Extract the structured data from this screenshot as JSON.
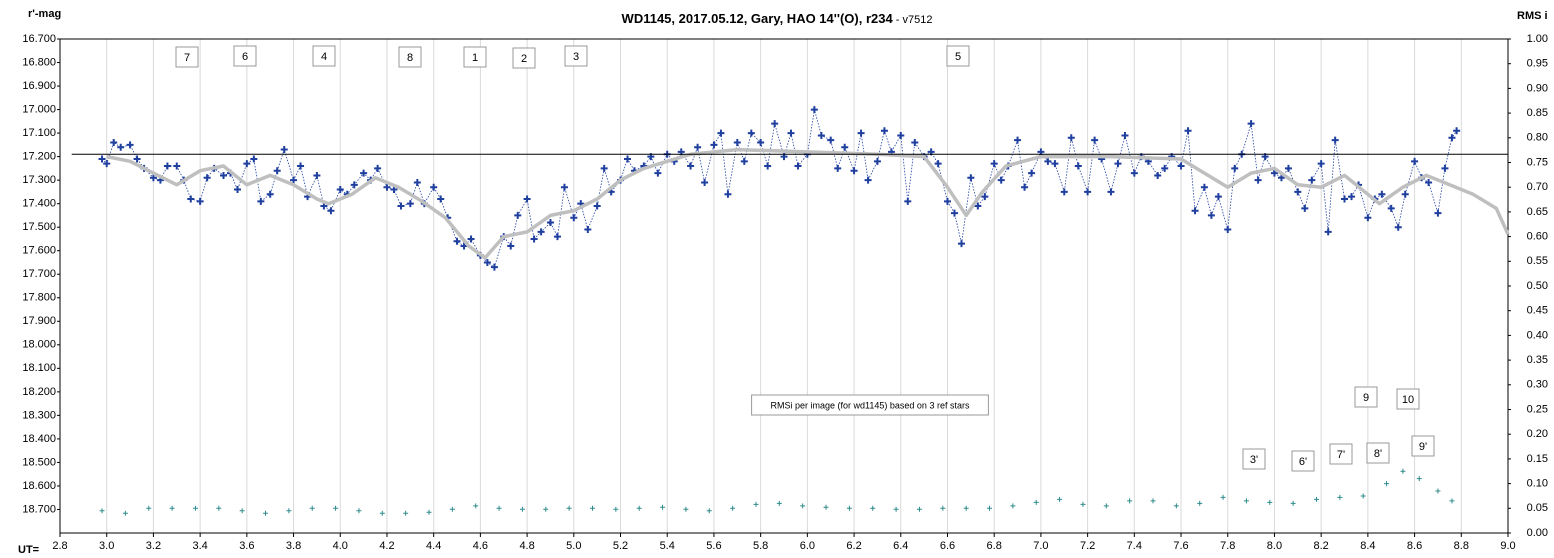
{
  "chart_data": {
    "type": "line",
    "title": "WD1145, 2017.05.12,  Gary, HAO 14''(O), r234",
    "subtitle": " - v7512",
    "y_label": "r'-mag",
    "y2_label": "RMS i",
    "x_label": "UT=",
    "xlim": [
      2.8,
      9.0
    ],
    "ylim": [
      18.8,
      16.7
    ],
    "y2lim": [
      0,
      1
    ],
    "xticks": [
      2.8,
      {
        "value": 3.0,
        "label": "3.0"
      },
      3.2,
      3.4,
      3.6,
      3.8,
      {
        "value": 4.0,
        "label": "4.0"
      },
      4.2,
      4.4,
      4.6,
      4.8,
      {
        "value": 5.0,
        "label": "5.0"
      },
      5.2,
      5.4,
      5.6,
      5.8,
      {
        "value": 6.0,
        "label": "6.0"
      },
      6.2,
      6.4,
      6.6,
      6.8,
      {
        "value": 7.0,
        "label": "7.0"
      },
      7.2,
      7.4,
      7.6,
      7.8,
      {
        "value": 8.0,
        "label": "8.0"
      },
      8.2,
      8.4,
      8.6,
      8.8,
      {
        "value": 9.0,
        "label": "9.0"
      }
    ],
    "yticks": [
      {
        "value": 16.7,
        "label": "16.700"
      },
      {
        "value": 16.8,
        "label": "16.800"
      },
      {
        "value": 16.9,
        "label": "16.900"
      },
      {
        "value": 17.0,
        "label": "17.000"
      },
      {
        "value": 17.1,
        "label": "17.100"
      },
      {
        "value": 17.2,
        "label": "17.200"
      },
      {
        "value": 17.3,
        "label": "17.300"
      },
      {
        "value": 17.4,
        "label": "17.400"
      },
      {
        "value": 17.5,
        "label": "17.500"
      },
      {
        "value": 17.6,
        "label": "17.600"
      },
      {
        "value": 17.7,
        "label": "17.700"
      },
      {
        "value": 17.8,
        "label": "17.800"
      },
      {
        "value": 17.9,
        "label": "17.900"
      },
      {
        "value": 18.0,
        "label": "18.000"
      },
      {
        "value": 18.1,
        "label": "18.100"
      },
      {
        "value": 18.2,
        "label": "18.200"
      },
      {
        "value": 18.3,
        "label": "18.300"
      },
      {
        "value": 18.4,
        "label": "18.400"
      },
      {
        "value": 18.5,
        "label": "18.500"
      },
      {
        "value": 18.6,
        "label": "18.600"
      },
      {
        "value": 18.7,
        "label": "18.700"
      }
    ],
    "y2ticks": [
      {
        "value": 0,
        "label": "0.00"
      },
      0.05,
      {
        "value": 0.1,
        "label": "0.10"
      },
      0.15,
      {
        "value": 0.2,
        "label": "0.20"
      },
      0.25,
      {
        "value": 0.3,
        "label": "0.30"
      },
      0.35,
      {
        "value": 0.4,
        "label": "0.40"
      },
      0.45,
      {
        "value": 0.5,
        "label": "0.50"
      },
      0.55,
      {
        "value": 0.6,
        "label": "0.60"
      },
      0.65,
      {
        "value": 0.7,
        "label": "0.70"
      },
      0.75,
      {
        "value": 0.8,
        "label": "0.80"
      },
      0.85,
      {
        "value": 0.9,
        "label": "0.90"
      },
      0.95,
      {
        "value": 1,
        "label": "1.00"
      }
    ],
    "grid": true,
    "series": [
      {
        "color": "#1f3f9f",
        "marker": "+",
        "line": "dotted",
        "x": [
          2.98,
          3.0,
          3.03,
          3.06,
          3.1,
          3.13,
          3.16,
          3.2,
          3.23,
          3.26,
          3.3,
          3.33,
          3.36,
          3.4,
          3.43,
          3.46,
          3.5,
          3.53,
          3.56,
          3.6,
          3.63,
          3.66,
          3.7,
          3.73,
          3.76,
          3.8,
          3.83,
          3.86,
          3.9,
          3.93,
          3.96,
          4.0,
          4.03,
          4.06,
          4.1,
          4.13,
          4.16,
          4.2,
          4.23,
          4.26,
          4.3,
          4.33,
          4.36,
          4.4,
          4.43,
          4.46,
          4.5,
          4.53,
          4.56,
          4.6,
          4.63,
          4.66,
          4.7,
          4.73,
          4.76,
          4.8,
          4.83,
          4.86,
          4.9,
          4.93,
          4.96,
          5.0,
          5.03,
          5.06,
          5.1,
          5.13,
          5.16,
          5.2,
          5.23,
          5.26,
          5.3,
          5.33,
          5.36,
          5.4,
          5.43,
          5.46,
          5.5,
          5.53,
          5.56,
          5.6,
          5.63,
          5.66,
          5.7,
          5.73,
          5.76,
          5.8,
          5.83,
          5.86,
          5.9,
          5.93,
          5.96,
          6.0,
          6.03,
          6.06,
          6.1,
          6.13,
          6.16,
          6.2,
          6.23,
          6.26,
          6.3,
          6.33,
          6.36,
          6.4,
          6.43,
          6.46,
          6.5,
          6.53,
          6.56,
          6.6,
          6.63,
          6.66,
          6.7,
          6.73,
          6.76,
          6.8,
          6.83,
          6.86,
          6.9,
          6.93,
          6.96,
          7.0,
          7.03,
          7.06,
          7.1,
          7.13,
          7.16,
          7.2,
          7.23,
          7.26,
          7.3,
          7.33,
          7.36,
          7.4,
          7.43,
          7.46,
          7.5,
          7.53,
          7.56,
          7.6,
          7.63,
          7.66,
          7.7,
          7.73,
          7.76,
          7.8,
          7.83,
          7.86,
          7.9,
          7.93,
          7.96,
          8.0,
          8.03,
          8.06,
          8.1,
          8.13,
          8.16,
          8.2,
          8.23,
          8.26,
          8.3,
          8.33,
          8.36,
          8.4,
          8.43,
          8.46,
          8.5,
          8.53,
          8.56,
          8.6,
          8.63,
          8.66,
          8.7,
          8.73,
          8.76,
          8.78
        ],
        "values": [
          17.21,
          17.23,
          17.14,
          17.16,
          17.15,
          17.21,
          17.25,
          17.29,
          17.3,
          17.24,
          17.24,
          17.3,
          17.38,
          17.39,
          17.29,
          17.25,
          17.28,
          17.27,
          17.34,
          17.23,
          17.21,
          17.39,
          17.36,
          17.26,
          17.17,
          17.3,
          17.24,
          17.37,
          17.28,
          17.41,
          17.43,
          17.34,
          17.36,
          17.32,
          17.27,
          17.3,
          17.25,
          17.33,
          17.34,
          17.41,
          17.4,
          17.31,
          17.4,
          17.33,
          17.38,
          17.46,
          17.56,
          17.58,
          17.55,
          17.62,
          17.65,
          17.67,
          17.54,
          17.58,
          17.45,
          17.38,
          17.55,
          17.52,
          17.48,
          17.54,
          17.33,
          17.46,
          17.4,
          17.51,
          17.41,
          17.25,
          17.35,
          17.3,
          17.21,
          17.26,
          17.24,
          17.2,
          17.27,
          17.19,
          17.22,
          17.18,
          17.24,
          17.16,
          17.31,
          17.15,
          17.1,
          17.36,
          17.14,
          17.22,
          17.1,
          17.14,
          17.24,
          17.06,
          17.2,
          17.1,
          17.24,
          17.19,
          17.0,
          17.11,
          17.13,
          17.25,
          17.16,
          17.26,
          17.1,
          17.3,
          17.22,
          17.09,
          17.18,
          17.11,
          17.39,
          17.14,
          17.2,
          17.18,
          17.23,
          17.39,
          17.44,
          17.57,
          17.29,
          17.41,
          17.37,
          17.23,
          17.3,
          17.24,
          17.13,
          17.33,
          17.27,
          17.18,
          17.22,
          17.23,
          17.35,
          17.12,
          17.24,
          17.35,
          17.13,
          17.21,
          17.35,
          17.23,
          17.11,
          17.27,
          17.2,
          17.22,
          17.28,
          17.25,
          17.2,
          17.24,
          17.09,
          17.43,
          17.33,
          17.45,
          17.37,
          17.51,
          17.25,
          17.19,
          17.06,
          17.3,
          17.2,
          17.27,
          17.29,
          17.25,
          17.35,
          17.42,
          17.3,
          17.23,
          17.52,
          17.13,
          17.38,
          17.37,
          17.32,
          17.46,
          17.38,
          17.36,
          17.42,
          17.5,
          17.36,
          17.22,
          17.29,
          17.31,
          17.44,
          17.25,
          17.12,
          17.09
        ]
      },
      {
        "color": "#bfbfbf",
        "line": "solid",
        "x": [
          3.0,
          3.1,
          3.2,
          3.3,
          3.4,
          3.5,
          3.6,
          3.7,
          3.8,
          3.9,
          3.95,
          4.05,
          4.15,
          4.25,
          4.35,
          4.45,
          4.55,
          4.62,
          4.7,
          4.8,
          4.9,
          5.0,
          5.1,
          5.2,
          5.3,
          5.4,
          5.5,
          5.7,
          6.0,
          6.3,
          6.5,
          6.6,
          6.68,
          6.75,
          6.85,
          7.0,
          7.3,
          7.6,
          7.7,
          7.8,
          7.9,
          8.0,
          8.1,
          8.2,
          8.3,
          8.45,
          8.55,
          8.65,
          8.75,
          8.85,
          8.95,
          9.0
        ],
        "values": [
          17.2,
          17.22,
          17.27,
          17.32,
          17.26,
          17.24,
          17.32,
          17.28,
          17.32,
          17.38,
          17.4,
          17.36,
          17.29,
          17.33,
          17.39,
          17.46,
          17.58,
          17.63,
          17.54,
          17.52,
          17.45,
          17.43,
          17.38,
          17.3,
          17.25,
          17.22,
          17.19,
          17.17,
          17.18,
          17.19,
          17.2,
          17.33,
          17.45,
          17.35,
          17.24,
          17.2,
          17.2,
          17.21,
          17.27,
          17.33,
          17.27,
          17.25,
          17.32,
          17.33,
          17.28,
          17.4,
          17.33,
          17.28,
          17.32,
          17.36,
          17.42,
          17.53
        ]
      },
      {
        "color": "#000000",
        "line": "solid",
        "x": [
          2.85,
          9.0
        ],
        "values": [
          17.19,
          17.19
        ]
      },
      {
        "color": "#2e8b8b",
        "marker": "+",
        "axis": "y2",
        "x": [
          2.98,
          3.08,
          3.18,
          3.28,
          3.38,
          3.48,
          3.58,
          3.68,
          3.78,
          3.88,
          3.98,
          4.08,
          4.18,
          4.28,
          4.38,
          4.48,
          4.58,
          4.68,
          4.78,
          4.88,
          4.98,
          5.08,
          5.18,
          5.28,
          5.38,
          5.48,
          5.58,
          5.68,
          5.78,
          5.88,
          5.98,
          6.08,
          6.18,
          6.28,
          6.38,
          6.48,
          6.58,
          6.68,
          6.78,
          6.88,
          6.98,
          7.08,
          7.18,
          7.28,
          7.38,
          7.48,
          7.58,
          7.68,
          7.78,
          7.88,
          7.98,
          8.08,
          8.18,
          8.28,
          8.38,
          8.48,
          8.55,
          8.62,
          8.7,
          8.76
        ],
        "values": [
          0.045,
          0.04,
          0.05,
          0.05,
          0.05,
          0.05,
          0.045,
          0.04,
          0.045,
          0.05,
          0.05,
          0.045,
          0.04,
          0.04,
          0.042,
          0.048,
          0.055,
          0.05,
          0.048,
          0.048,
          0.05,
          0.05,
          0.048,
          0.05,
          0.052,
          0.048,
          0.045,
          0.05,
          0.058,
          0.06,
          0.055,
          0.052,
          0.05,
          0.05,
          0.048,
          0.048,
          0.05,
          0.05,
          0.05,
          0.055,
          0.062,
          0.068,
          0.058,
          0.055,
          0.065,
          0.065,
          0.055,
          0.06,
          0.072,
          0.065,
          0.062,
          0.06,
          0.068,
          0.072,
          0.075,
          0.1,
          0.125,
          0.11,
          0.085,
          0.065
        ]
      }
    ],
    "annotations": [
      "7",
      "6",
      "4",
      "8",
      "1",
      "2",
      "3",
      "5",
      "RMSi per image (for wd1145) based on 3 ref stars",
      "9",
      "10",
      "3'",
      "6'",
      "7'",
      "8'",
      "9'"
    ]
  }
}
